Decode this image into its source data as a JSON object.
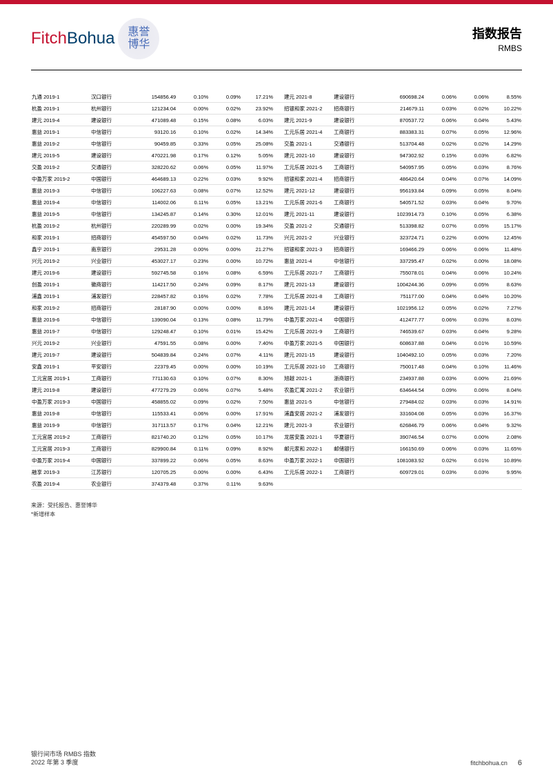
{
  "header": {
    "logo_fitch": "Fitch",
    "logo_bohua": "Bohua",
    "chinese_logo_line1": "惠誉",
    "chinese_logo_line2": "博华",
    "title": "指数报告",
    "subtitle": "RMBS"
  },
  "table": {
    "rows": [
      [
        "九通 2019-1",
        "汉口银行",
        "154856.49",
        "0.10%",
        "0.09%",
        "17.21%",
        "建元 2021-8",
        "建设银行",
        "690698.24",
        "0.06%",
        "0.06%",
        "8.55%"
      ],
      [
        "杭盈 2019-1",
        "杭州银行",
        "121234.04",
        "0.00%",
        "0.02%",
        "23.92%",
        "招银和家 2021-2",
        "招商银行",
        "214679.11",
        "0.03%",
        "0.02%",
        "10.22%"
      ],
      [
        "建元 2019-4",
        "建设银行",
        "471089.48",
        "0.15%",
        "0.08%",
        "6.03%",
        "建元 2021-9",
        "建设银行",
        "870537.72",
        "0.06%",
        "0.04%",
        "5.43%"
      ],
      [
        "惠益 2019-1",
        "中信银行",
        "93120.16",
        "0.10%",
        "0.02%",
        "14.34%",
        "工元乐居 2021-4",
        "工商银行",
        "883383.31",
        "0.07%",
        "0.05%",
        "12.96%"
      ],
      [
        "惠益 2019-2",
        "中信银行",
        "90459.85",
        "0.33%",
        "0.05%",
        "25.08%",
        "交盈 2021-1",
        "交通银行",
        "513704.48",
        "0.02%",
        "0.02%",
        "14.29%"
      ],
      [
        "建元 2019-5",
        "建设银行",
        "470221.98",
        "0.17%",
        "0.12%",
        "5.05%",
        "建元 2021-10",
        "建设银行",
        "947302.92",
        "0.15%",
        "0.03%",
        "6.82%"
      ],
      [
        "交盈 2019-2",
        "交通银行",
        "328220.62",
        "0.06%",
        "0.05%",
        "11.97%",
        "工元乐居 2021-5",
        "工商银行",
        "540957.95",
        "0.05%",
        "0.03%",
        "8.76%"
      ],
      [
        "中盈万家 2019-2",
        "中国银行",
        "464689.13",
        "0.22%",
        "0.03%",
        "9.92%",
        "招银和家 2021-4",
        "招商银行",
        "486420.64",
        "0.04%",
        "0.07%",
        "14.09%"
      ],
      [
        "惠益 2019-3",
        "中信银行",
        "106227.63",
        "0.08%",
        "0.07%",
        "12.52%",
        "建元 2021-12",
        "建设银行",
        "956193.84",
        "0.09%",
        "0.05%",
        "8.04%"
      ],
      [
        "惠益 2019-4",
        "中信银行",
        "114002.06",
        "0.11%",
        "0.05%",
        "13.21%",
        "工元乐居 2021-6",
        "工商银行",
        "540571.52",
        "0.03%",
        "0.04%",
        "9.70%"
      ],
      [
        "惠益 2019-5",
        "中信银行",
        "134245.87",
        "0.14%",
        "0.30%",
        "12.01%",
        "建元 2021-11",
        "建设银行",
        "1023914.73",
        "0.10%",
        "0.05%",
        "6.38%"
      ],
      [
        "杭盈 2019-2",
        "杭州银行",
        "220289.99",
        "0.02%",
        "0.00%",
        "19.34%",
        "交盈 2021-2",
        "交通银行",
        "513398.82",
        "0.07%",
        "0.05%",
        "15.17%"
      ],
      [
        "和家 2019-1",
        "招商银行",
        "454597.50",
        "0.04%",
        "0.02%",
        "11.73%",
        "兴元 2021-2",
        "兴业银行",
        "323724.71",
        "0.22%",
        "0.00%",
        "12.45%"
      ],
      [
        "鑫宁 2019-1",
        "南京银行",
        "29531.28",
        "0.00%",
        "0.00%",
        "21.27%",
        "招银和家 2021-3",
        "招商银行",
        "169466.29",
        "0.06%",
        "0.06%",
        "11.48%"
      ],
      [
        "兴元 2019-2",
        "兴业银行",
        "453027.17",
        "0.23%",
        "0.00%",
        "10.72%",
        "惠益 2021-4",
        "中信银行",
        "337295.47",
        "0.02%",
        "0.00%",
        "18.08%"
      ],
      [
        "建元 2019-6",
        "建设银行",
        "592745.58",
        "0.16%",
        "0.08%",
        "6.59%",
        "工元乐居 2021-7",
        "工商银行",
        "755078.01",
        "0.04%",
        "0.06%",
        "10.24%"
      ],
      [
        "创盈 2019-1",
        "徽商银行",
        "114217.50",
        "0.24%",
        "0.09%",
        "8.17%",
        "建元 2021-13",
        "建设银行",
        "1004244.36",
        "0.09%",
        "0.05%",
        "8.63%"
      ],
      [
        "浦鑫 2019-1",
        "浦发银行",
        "228457.82",
        "0.16%",
        "0.02%",
        "7.78%",
        "工元乐居 2021-8",
        "工商银行",
        "751177.00",
        "0.04%",
        "0.04%",
        "10.20%"
      ],
      [
        "和家 2019-2",
        "招商银行",
        "28187.90",
        "0.00%",
        "0.00%",
        "8.16%",
        "建元 2021-14",
        "建设银行",
        "1021956.12",
        "0.05%",
        "0.02%",
        "7.27%"
      ],
      [
        "惠益 2019-6",
        "中信银行",
        "139090.04",
        "0.13%",
        "0.08%",
        "11.79%",
        "中盈万家 2021-4",
        "中国银行",
        "412477.77",
        "0.06%",
        "0.03%",
        "8.03%"
      ],
      [
        "惠益 2019-7",
        "中信银行",
        "129248.47",
        "0.10%",
        "0.01%",
        "15.42%",
        "工元乐居 2021-9",
        "工商银行",
        "746539.67",
        "0.03%",
        "0.04%",
        "9.28%"
      ],
      [
        "兴元 2019-2",
        "兴业银行",
        "47591.55",
        "0.08%",
        "0.00%",
        "7.40%",
        "中盈万家 2021-5",
        "中国银行",
        "608637.88",
        "0.04%",
        "0.01%",
        "10.59%"
      ],
      [
        "建元 2019-7",
        "建设银行",
        "504839.84",
        "0.24%",
        "0.07%",
        "4.11%",
        "建元 2021-15",
        "建设银行",
        "1040492.10",
        "0.05%",
        "0.03%",
        "7.20%"
      ],
      [
        "安鑫 2019-1",
        "平安银行",
        "22379.45",
        "0.00%",
        "0.00%",
        "10.19%",
        "工元乐居 2021-10",
        "工商银行",
        "750017.48",
        "0.04%",
        "0.10%",
        "11.46%"
      ],
      [
        "工元宜居 2019-1",
        "工商银行",
        "771130.63",
        "0.10%",
        "0.07%",
        "8.30%",
        "旭越 2021-1",
        "浙商银行",
        "234937.88",
        "0.03%",
        "0.00%",
        "21.69%"
      ],
      [
        "建元 2019-8",
        "建设银行",
        "477279.29",
        "0.06%",
        "0.07%",
        "5.48%",
        "农盈汇寓 2021-2",
        "农业银行",
        "634644.54",
        "0.09%",
        "0.06%",
        "8.04%"
      ],
      [
        "中盈万家 2019-3",
        "中国银行",
        "458855.02",
        "0.09%",
        "0.02%",
        "7.50%",
        "惠益 2021-5",
        "中信银行",
        "279484.02",
        "0.03%",
        "0.03%",
        "14.91%"
      ],
      [
        "惠益 2019-8",
        "中信银行",
        "115533.41",
        "0.06%",
        "0.00%",
        "17.91%",
        "浦鑫安居 2021-2",
        "浦发银行",
        "331604.08",
        "0.05%",
        "0.03%",
        "16.37%"
      ],
      [
        "惠益 2019-9",
        "中信银行",
        "317113.57",
        "0.17%",
        "0.04%",
        "12.21%",
        "建元 2021-3",
        "农业银行",
        "626846.79",
        "0.06%",
        "0.04%",
        "9.32%"
      ],
      [
        "工元宜居 2019-2",
        "工商银行",
        "821740.20",
        "0.12%",
        "0.05%",
        "10.17%",
        "龙居安盈 2021-1",
        "华夏银行",
        "390746.54",
        "0.07%",
        "0.00%",
        "2.08%"
      ],
      [
        "工元宜居 2019-3",
        "工商银行",
        "829900.84",
        "0.11%",
        "0.09%",
        "8.92%",
        "邮元家和 2022-1",
        "邮储银行",
        "166150.69",
        "0.06%",
        "0.03%",
        "11.65%"
      ],
      [
        "中盈万家 2019-4",
        "中国银行",
        "337899.22",
        "0.06%",
        "0.05%",
        "8.63%",
        "中盈万家 2022-1",
        "中国银行",
        "1081083.92",
        "0.02%",
        "0.01%",
        "10.89%"
      ],
      [
        "融享 2019-3",
        "江苏银行",
        "120705.25",
        "0.00%",
        "0.00%",
        "6.43%",
        "工元乐居 2022-1",
        "工商银行",
        "609729.01",
        "0.03%",
        "0.03%",
        "9.95%"
      ],
      [
        "农盈 2019-4",
        "农业银行",
        "374379.48",
        "0.37%",
        "0.11%",
        "9.63%",
        "",
        "",
        "",
        "",
        "",
        ""
      ]
    ]
  },
  "notes": {
    "source": "来源：受托报告、惠誉博华",
    "new_sample": "*新增样本"
  },
  "footer": {
    "line1": "银行间市场 RMBS 指数",
    "line2": "2022 年第 3 季度",
    "website": "fitchbohua.cn",
    "page": "6"
  }
}
